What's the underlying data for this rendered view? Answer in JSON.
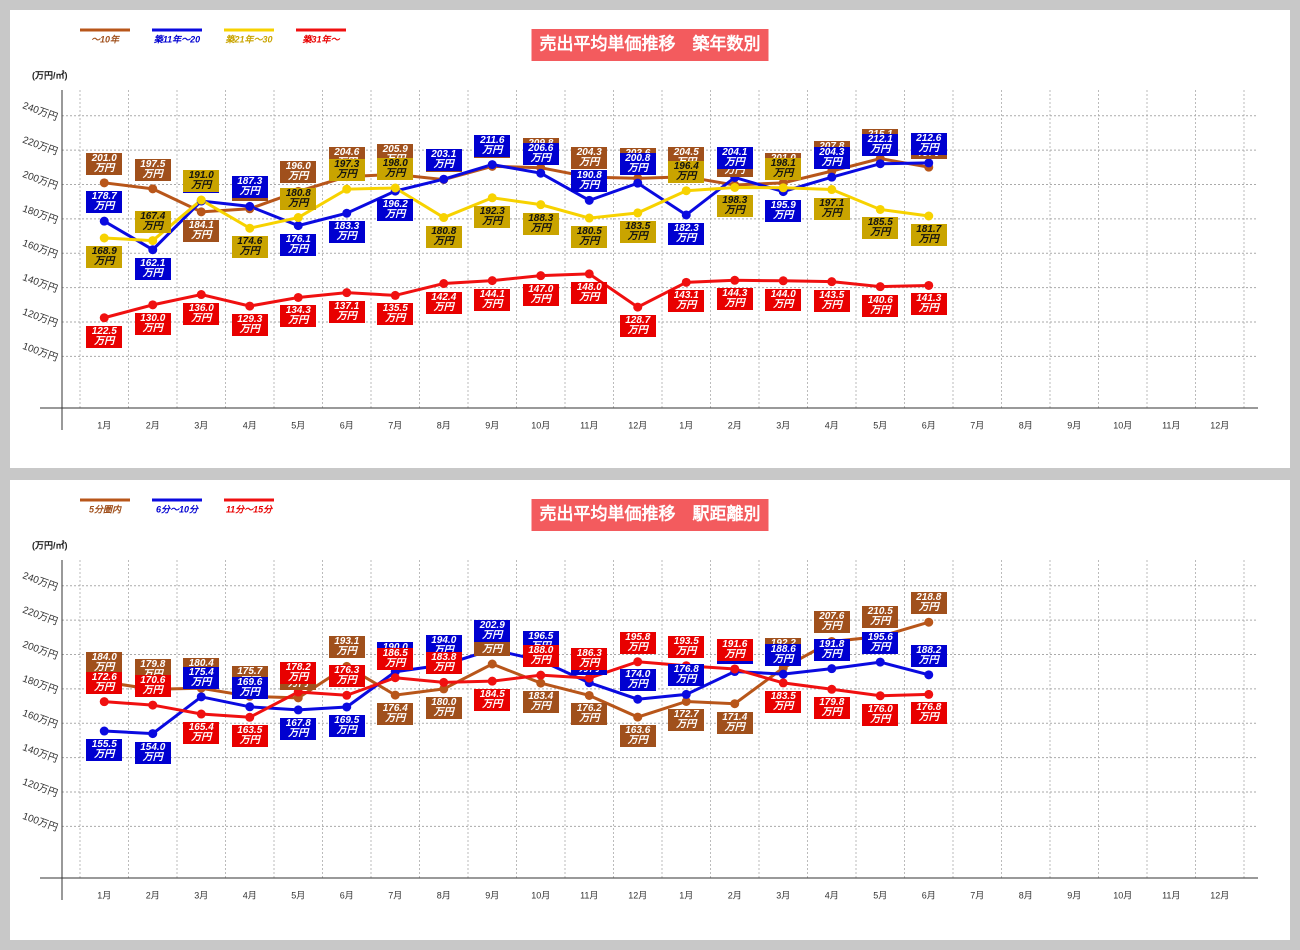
{
  "chart_data": [
    {
      "type": "line",
      "title": "売出平均単価推移　築年数別",
      "y_label": "(万円/㎡)",
      "categories": [
        "1月",
        "2月",
        "3月",
        "4月",
        "5月",
        "6月",
        "7月",
        "8月",
        "9月",
        "10月",
        "11月",
        "12月",
        "1月",
        "2月",
        "3月",
        "4月",
        "5月",
        "6月",
        "7月",
        "8月",
        "9月",
        "10月",
        "11月",
        "12月"
      ],
      "ylim": [
        70,
        255
      ],
      "yticks": [
        {
          "value": 100,
          "label": "100万円"
        },
        {
          "value": 120,
          "label": "120万円"
        },
        {
          "value": 140,
          "label": "140万円"
        },
        {
          "value": 160,
          "label": "160万円"
        },
        {
          "value": 180,
          "label": "180万円"
        },
        {
          "value": 200,
          "label": "200万円"
        },
        {
          "value": 220,
          "label": "220万円"
        },
        {
          "value": 240,
          "label": "240万円"
        }
      ],
      "grid": true,
      "legend": "top-left",
      "series": [
        {
          "name": "〜10年",
          "color": "#b8561a",
          "label_color": "#a0501c",
          "label_text_color": "#ffffff",
          "values": [
            201.0,
            197.5,
            184.1,
            185.9,
            196.0,
            204.6,
            205.9,
            202.9,
            210.6,
            209.8,
            204.3,
            203.6,
            204.5,
            199.7,
            201.0,
            207.8,
            215.1,
            210.1,
            null,
            null,
            null,
            null,
            null,
            null
          ],
          "value_labels": [
            "201.0万円",
            "197.5万円",
            "184.1万円",
            "185.9万円",
            "196.0万円",
            "204.6万円",
            "205.9万円",
            "202.9万円",
            "210.6万円",
            "209.8万円",
            "204.3万円",
            "203.6万円",
            "204.5万円",
            "199.7万円",
            "201.0万円",
            "207.8万円",
            "215.1万円",
            "210.1万円",
            null,
            null,
            null,
            null,
            null,
            null
          ]
        },
        {
          "name": "築11年〜20",
          "color": "#0a0ae0",
          "label_color": "#0000d0",
          "label_text_color": "#ffffff",
          "values": [
            178.7,
            162.1,
            190.4,
            187.3,
            176.1,
            183.3,
            196.2,
            203.1,
            211.6,
            206.6,
            190.8,
            200.8,
            182.3,
            204.1,
            195.9,
            204.3,
            212.1,
            212.6,
            null,
            null,
            null,
            null,
            null,
            null
          ],
          "value_labels": [
            "178.7万円",
            "162.1万円",
            "190.4万円",
            "187.3万円",
            "176.1万円",
            "183.3万円",
            "196.2万円",
            "203.1万円",
            "211.6万円",
            "206.6万円",
            "190.8万円",
            "200.8万円",
            "182.3万円",
            "204.1万円",
            "195.9万円",
            "204.3万円",
            "212.1万円",
            "212.6万円",
            null,
            null,
            null,
            null,
            null,
            null
          ]
        },
        {
          "name": "築21年〜30",
          "color": "#f7d200",
          "label_color": "#c9a400",
          "label_text_color": "#111111",
          "values": [
            168.9,
            167.4,
            191.0,
            174.6,
            180.8,
            197.3,
            198.0,
            180.8,
            192.3,
            188.3,
            180.5,
            183.5,
            196.4,
            198.3,
            198.1,
            197.1,
            185.5,
            181.7,
            null,
            null,
            null,
            null,
            null,
            null
          ],
          "value_labels": [
            "168.9万円",
            "167.4万円",
            "191.0万円",
            "174.6万円",
            "180.8万円",
            "197.3万円",
            "198.0万円",
            "180.8万円",
            "192.3万円",
            "188.3万円",
            "180.5万円",
            "183.5万円",
            "196.4万円",
            "198.3万円",
            "198.1万円",
            "197.1万円",
            "185.5万円",
            "181.7万円",
            null,
            null,
            null,
            null,
            null,
            null
          ]
        },
        {
          "name": "築31年〜",
          "color": "#f01010",
          "label_color": "#e80000",
          "label_text_color": "#ffffff",
          "values": [
            122.5,
            130.0,
            136.0,
            129.3,
            134.3,
            137.1,
            135.5,
            142.4,
            144.1,
            147.0,
            148.0,
            128.7,
            143.1,
            144.3,
            144.0,
            143.5,
            140.6,
            141.3,
            null,
            null,
            null,
            null,
            null,
            null
          ],
          "value_labels": [
            "122.5万円",
            "130.0万円",
            "136.0万円",
            "129.3万円",
            "134.3万円",
            "137.1万円",
            "135.5万円",
            "142.4万円",
            "144.1万円",
            "147.0万円",
            "148.0万円",
            "128.7万円",
            "143.1万円",
            "144.3万円",
            "144.0万円",
            "143.5万円",
            "140.6万円",
            "141.3万円",
            null,
            null,
            null,
            null,
            null,
            null
          ]
        }
      ]
    },
    {
      "type": "line",
      "title": "売出平均単価推移　駅距離別",
      "y_label": "(万円/㎡)",
      "categories": [
        "1月",
        "2月",
        "3月",
        "4月",
        "5月",
        "6月",
        "7月",
        "8月",
        "9月",
        "10月",
        "11月",
        "12月",
        "1月",
        "2月",
        "3月",
        "4月",
        "5月",
        "6月",
        "7月",
        "8月",
        "9月",
        "10月",
        "11月",
        "12月"
      ],
      "ylim": [
        70,
        255
      ],
      "yticks": [
        {
          "value": 100,
          "label": "100万円"
        },
        {
          "value": 120,
          "label": "120万円"
        },
        {
          "value": 140,
          "label": "140万円"
        },
        {
          "value": 160,
          "label": "160万円"
        },
        {
          "value": 180,
          "label": "180万円"
        },
        {
          "value": 200,
          "label": "200万円"
        },
        {
          "value": 220,
          "label": "220万円"
        },
        {
          "value": 240,
          "label": "240万円"
        }
      ],
      "grid": true,
      "legend": "top-left",
      "series": [
        {
          "name": "5分圏内",
          "color": "#b8561a",
          "label_color": "#a0501c",
          "label_text_color": "#ffffff",
          "values": [
            184.0,
            179.8,
            180.4,
            175.7,
            174.8,
            193.1,
            176.4,
            180.0,
            194.5,
            183.4,
            176.2,
            163.6,
            172.7,
            171.4,
            192.2,
            207.6,
            210.5,
            218.8,
            null,
            null,
            null,
            null,
            null,
            null
          ],
          "value_labels": [
            "184.0万円",
            "179.8万円",
            "180.4万円",
            "175.7万円",
            "174.8万円",
            "193.1万円",
            "176.4万円",
            "180.0万円",
            "194.5万円",
            "183.4万円",
            "176.2万円",
            "163.6万円",
            "172.7万円",
            "171.4万円",
            "192.2万円",
            "207.6万円",
            "210.5万円",
            "218.8万円",
            null,
            null,
            null,
            null,
            null,
            null
          ]
        },
        {
          "name": "6分〜10分",
          "color": "#0a0ae0",
          "label_color": "#0000d0",
          "label_text_color": "#ffffff",
          "values": [
            155.5,
            154.0,
            175.4,
            169.6,
            167.8,
            169.5,
            190.0,
            194.0,
            202.9,
            196.5,
            183.6,
            174.0,
            176.8,
            190.1,
            188.6,
            191.8,
            195.6,
            188.2,
            null,
            null,
            null,
            null,
            null,
            null
          ],
          "value_labels": [
            "155.5万円",
            "154.0万円",
            "175.4万円",
            "169.6万円",
            "167.8万円",
            "169.5万円",
            "190.0万円",
            "194.0万円",
            "202.9万円",
            "196.5万円",
            "183.6万円",
            "174.0万円",
            "176.8万円",
            "190.1万円",
            "188.6万円",
            "191.8万円",
            "195.6万円",
            "188.2万円",
            null,
            null,
            null,
            null,
            null,
            null
          ]
        },
        {
          "name": "11分〜15分",
          "color": "#f01010",
          "label_color": "#e80000",
          "label_text_color": "#ffffff",
          "values": [
            172.6,
            170.6,
            165.4,
            163.5,
            178.2,
            176.3,
            186.5,
            183.8,
            184.5,
            188.0,
            186.3,
            195.8,
            193.5,
            191.6,
            183.5,
            179.8,
            176.0,
            176.8,
            null,
            null,
            null,
            null,
            null,
            null
          ],
          "value_labels": [
            "172.6万円",
            "170.6万円",
            "165.4万円",
            "163.5万円",
            "178.2万円",
            "176.3万円",
            "186.5万円",
            "183.8万円",
            "184.5万円",
            "188.0万円",
            "186.3万円",
            "195.8万円",
            "193.5万円",
            "191.6万円",
            "183.5万円",
            "179.8万円",
            "176.0万円",
            "176.8万円",
            null,
            null,
            null,
            null,
            null,
            null
          ]
        }
      ]
    }
  ]
}
